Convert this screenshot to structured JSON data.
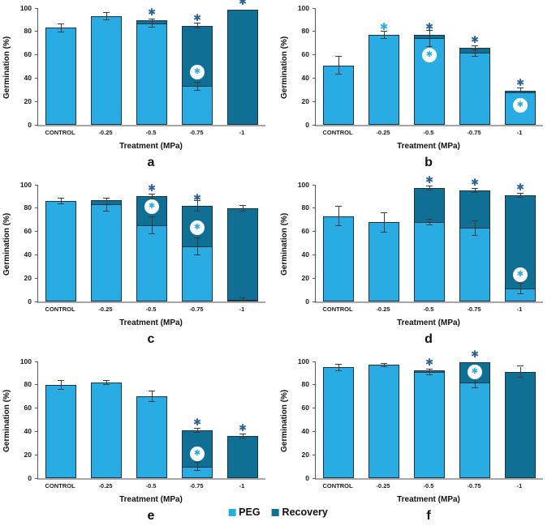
{
  "figure": {
    "ylabel": "Germination (%)",
    "xlabel": "Treatment (MPa)",
    "panel_letters": [
      "a",
      "b",
      "c",
      "d",
      "e",
      "f"
    ]
  },
  "legend": {
    "items": [
      {
        "label": "PEG",
        "color": "#29ace4"
      },
      {
        "label": "Recovery",
        "color": "#0f6f94"
      }
    ]
  },
  "colors": {
    "peg": "#29ace4",
    "recovery": "#0f6f94",
    "bar_border": "#1c3344",
    "star_dark": "#2a6496",
    "star_light": "#29abe2",
    "error_bar": "#3a3a3a",
    "axis_left": "#595959",
    "axis_bottom": "#a6a6a6",
    "text": "#1a1a1a"
  },
  "chart_data": [
    {
      "type": "bar",
      "stacked": true,
      "panel": "a",
      "title": "",
      "xlabel": "Treatment (MPa)",
      "ylabel": "Germination (%)",
      "ylim": [
        0,
        100
      ],
      "yticks": [
        0,
        20,
        40,
        60,
        80,
        100
      ],
      "grid": false,
      "categories": [
        "CONTROL",
        "-0.25",
        "-0.5",
        "-0.75",
        "-1"
      ],
      "series": [
        {
          "name": "PEG",
          "values": [
            83,
            93,
            87,
            33,
            0
          ]
        },
        {
          "name": "Recovery",
          "values": [
            0,
            0,
            2.5,
            52,
            98.5
          ]
        }
      ],
      "error_peg": [
        3,
        3,
        3,
        3,
        null
      ],
      "error_total": [
        null,
        null,
        null,
        2,
        null
      ],
      "sig_star": [
        null,
        null,
        "dark",
        "dark",
        "dark"
      ],
      "circle_star_y": [
        null,
        null,
        null,
        45,
        null
      ]
    },
    {
      "type": "bar",
      "stacked": true,
      "panel": "b",
      "title": "",
      "xlabel": "Treatment (MPa)",
      "ylabel": "Germination (%)",
      "ylim": [
        0,
        100
      ],
      "yticks": [
        0,
        20,
        40,
        60,
        80,
        100
      ],
      "grid": false,
      "categories": [
        "CONTROL",
        "-0.25",
        "-0.5",
        "-0.75",
        "-1"
      ],
      "series": [
        {
          "name": "PEG",
          "values": [
            51,
            77,
            74,
            62,
            28
          ]
        },
        {
          "name": "Recovery",
          "values": [
            0,
            0,
            3,
            4,
            1.5
          ]
        }
      ],
      "error_peg": [
        7,
        3,
        6.5,
        3,
        null
      ],
      "error_total": [
        null,
        null,
        null,
        1.5,
        1.5
      ],
      "sig_star": [
        null,
        "light",
        "dark",
        "dark",
        "dark"
      ],
      "circle_star_y": [
        null,
        null,
        60,
        null,
        17
      ]
    },
    {
      "type": "bar",
      "stacked": true,
      "panel": "c",
      "title": "",
      "xlabel": "Treatment (MPa)",
      "ylabel": "Germination (%)",
      "ylim": [
        0,
        100
      ],
      "yticks": [
        0,
        20,
        40,
        60,
        80,
        100
      ],
      "grid": false,
      "categories": [
        "CONTROL",
        "-0.25",
        "-0.5",
        "-0.75",
        "-1"
      ],
      "series": [
        {
          "name": "PEG",
          "values": [
            86,
            83,
            65,
            47,
            1.5
          ]
        },
        {
          "name": "Recovery",
          "values": [
            0,
            4,
            25,
            35,
            78.5
          ]
        }
      ],
      "error_peg": [
        2,
        5,
        7,
        7,
        1
      ],
      "error_total": [
        null,
        null,
        1.5,
        4,
        2
      ],
      "sig_star": [
        null,
        null,
        "dark",
        "dark",
        null
      ],
      "circle_star_y": [
        null,
        null,
        81,
        63,
        null
      ]
    },
    {
      "type": "bar",
      "stacked": true,
      "panel": "d",
      "title": "",
      "xlabel": "Treatment (MPa)",
      "ylabel": "Germination (%)",
      "ylim": [
        0,
        100
      ],
      "yticks": [
        0,
        20,
        40,
        60,
        80,
        100
      ],
      "grid": false,
      "categories": [
        "CONTROL",
        "-0.25",
        "-0.5",
        "-0.75",
        "-1"
      ],
      "series": [
        {
          "name": "PEG",
          "values": [
            73,
            68,
            68,
            63,
            11
          ]
        },
        {
          "name": "Recovery",
          "values": [
            0,
            0,
            29,
            32,
            80
          ]
        }
      ],
      "error_peg": [
        8,
        8,
        2,
        6,
        4
      ],
      "error_total": [
        null,
        null,
        1.5,
        1.5,
        1.5
      ],
      "sig_star": [
        null,
        null,
        "dark",
        "dark",
        "dark"
      ],
      "circle_star_y": [
        null,
        null,
        null,
        null,
        23
      ]
    },
    {
      "type": "bar",
      "stacked": true,
      "panel": "e",
      "title": "",
      "xlabel": "Treatment (MPa)",
      "ylabel": "Germination (%)",
      "ylim": [
        0,
        100
      ],
      "yticks": [
        0,
        20,
        40,
        60,
        80,
        100
      ],
      "grid": false,
      "categories": [
        "CONTROL",
        "-0.25",
        "-0.5",
        "-0.75",
        "-1"
      ],
      "series": [
        {
          "name": "PEG",
          "values": [
            80,
            82,
            70,
            10,
            0
          ]
        },
        {
          "name": "Recovery",
          "values": [
            0,
            0,
            0,
            31,
            36
          ]
        }
      ],
      "error_peg": [
        3.5,
        1.5,
        4,
        3,
        null
      ],
      "error_total": [
        null,
        null,
        null,
        1.5,
        1.5
      ],
      "sig_star": [
        null,
        null,
        null,
        "dark",
        "dark"
      ],
      "circle_star_y": [
        null,
        null,
        null,
        21,
        null
      ]
    },
    {
      "type": "bar",
      "stacked": true,
      "panel": "f",
      "title": "",
      "xlabel": "Treatment (MPa)",
      "ylabel": "Germination (%)",
      "ylim": [
        0,
        100
      ],
      "yticks": [
        0,
        20,
        40,
        60,
        80,
        100
      ],
      "grid": false,
      "categories": [
        "CONTROL",
        "-0.25",
        "-0.5",
        "-0.75",
        "-1"
      ],
      "series": [
        {
          "name": "PEG",
          "values": [
            95,
            97,
            91,
            82,
            0
          ]
        },
        {
          "name": "Recovery",
          "values": [
            0,
            0,
            1.5,
            17.5,
            91
          ]
        }
      ],
      "error_peg": [
        2.5,
        1,
        2,
        4,
        null
      ],
      "error_total": [
        null,
        null,
        null,
        null,
        4.5
      ],
      "sig_star": [
        null,
        null,
        "dark",
        "dark",
        null
      ],
      "circle_star_y": [
        null,
        null,
        null,
        91,
        null
      ]
    }
  ]
}
